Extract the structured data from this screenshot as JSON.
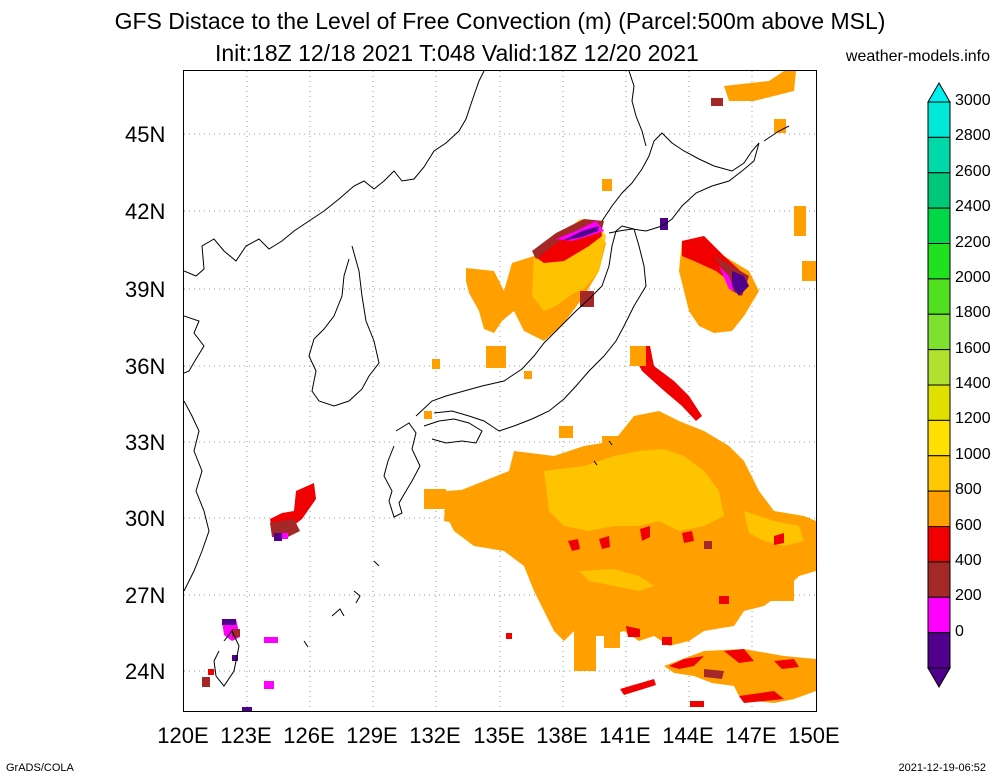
{
  "header": {
    "title_line1": "GFS Distace to the Level of Free Convection (m) (Parcel:500m above MSL)",
    "title_line2": "Init:18Z 12/18 2021 T:048 Valid:18Z 12/20 2021",
    "site": "weather-models.info"
  },
  "axes": {
    "lat_labels": [
      "45N",
      "42N",
      "39N",
      "36N",
      "33N",
      "30N",
      "27N",
      "24N"
    ],
    "lon_labels": [
      "120E",
      "123E",
      "126E",
      "129E",
      "132E",
      "135E",
      "138E",
      "141E",
      "144E",
      "147E",
      "150E"
    ]
  },
  "colorbar": {
    "labels": [
      "3000",
      "2800",
      "2600",
      "2400",
      "2200",
      "2000",
      "1800",
      "1600",
      "1400",
      "1200",
      "1000",
      "800",
      "600",
      "400",
      "200",
      "0"
    ],
    "colors": [
      "#00e8d8",
      "#00d8a8",
      "#00c878",
      "#00d848",
      "#20e020",
      "#50e020",
      "#80e030",
      "#b0e030",
      "#e0e000",
      "#ffe000",
      "#ffc800",
      "#ffa000",
      "#f00000",
      "#a52828",
      "#ff00ff",
      "#50008c"
    ]
  },
  "footer": {
    "left": "GrADS/COLA",
    "right": "2021-12-19-06:52"
  },
  "colors": {
    "orange": "#ffa000",
    "gold": "#ffc800",
    "red": "#f00000",
    "brown": "#a52828",
    "magenta": "#ff00ff",
    "purple": "#50008c"
  }
}
